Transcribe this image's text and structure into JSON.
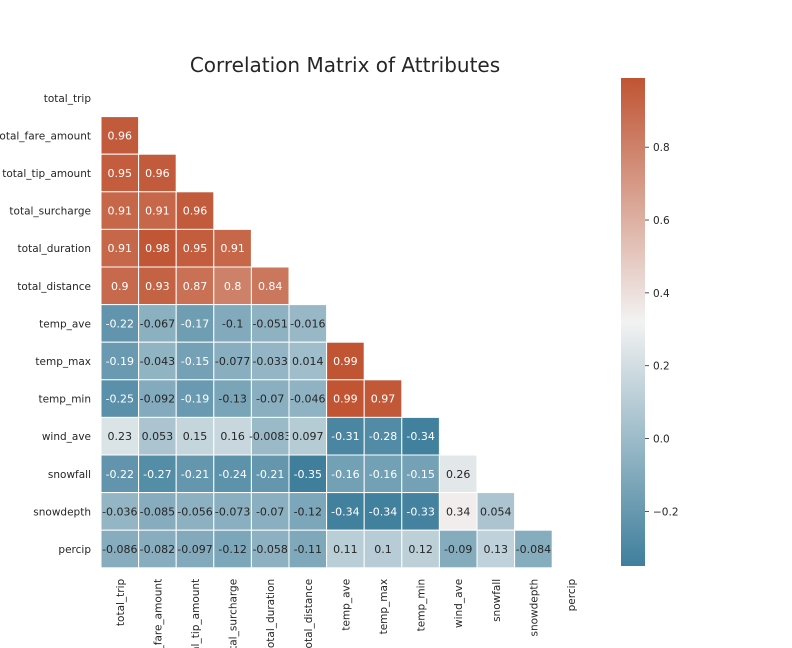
{
  "chart_data": {
    "type": "heatmap",
    "title": "Correlation Matrix of Attributes",
    "labels": [
      "total_trip",
      "total_fare_amount",
      "total_tip_amount",
      "total_surcharge",
      "total_duration",
      "total_distance",
      "temp_ave",
      "temp_max",
      "temp_min",
      "wind_ave",
      "snowfall",
      "snowdepth",
      "percip"
    ],
    "x_tick_labels": [
      "total_trip",
      "l_fare_amount",
      "al_tip_amount",
      "otal_surcharge",
      "total_duration",
      "total_distance",
      "temp_ave",
      "temp_max",
      "temp_min",
      "wind_ave",
      "snowfall",
      "snowdepth",
      "percip"
    ],
    "mask": "upper triangle and diagonal hidden",
    "lower_triangle": [
      [],
      [
        0.96
      ],
      [
        0.95,
        0.96
      ],
      [
        0.91,
        0.91,
        0.96
      ],
      [
        0.91,
        0.98,
        0.95,
        0.91
      ],
      [
        0.9,
        0.93,
        0.87,
        0.8,
        0.84
      ],
      [
        -0.22,
        -0.067,
        -0.17,
        -0.1,
        -0.051,
        -0.016
      ],
      [
        -0.19,
        -0.043,
        -0.15,
        -0.077,
        -0.033,
        0.014,
        0.99
      ],
      [
        -0.25,
        -0.092,
        -0.19,
        -0.13,
        -0.07,
        -0.046,
        0.99,
        0.97
      ],
      [
        0.23,
        0.053,
        0.15,
        0.16,
        -0.0083,
        0.097,
        -0.31,
        -0.28,
        -0.34
      ],
      [
        -0.22,
        -0.27,
        -0.21,
        -0.24,
        -0.21,
        -0.35,
        -0.16,
        -0.16,
        -0.15,
        0.26
      ],
      [
        -0.036,
        -0.085,
        -0.056,
        -0.073,
        -0.07,
        -0.12,
        -0.34,
        -0.34,
        -0.33,
        0.34,
        0.054
      ],
      [
        -0.086,
        -0.082,
        -0.097,
        -0.12,
        -0.058,
        -0.11,
        0.11,
        0.1,
        0.12,
        -0.09,
        0.13,
        -0.084
      ]
    ],
    "colorbar": {
      "min": -0.35,
      "max": 0.99,
      "ticks": [
        -0.2,
        0.0,
        0.2,
        0.4,
        0.6,
        0.8
      ],
      "tick_labels": [
        "−0.2",
        "0.0",
        "0.2",
        "0.4",
        "0.6",
        "0.8"
      ],
      "colormap": "diverging blue-white-red",
      "colors": {
        "low": "#3f7f9c",
        "mid": "#f2f2f2",
        "high": "#c05433"
      }
    }
  }
}
